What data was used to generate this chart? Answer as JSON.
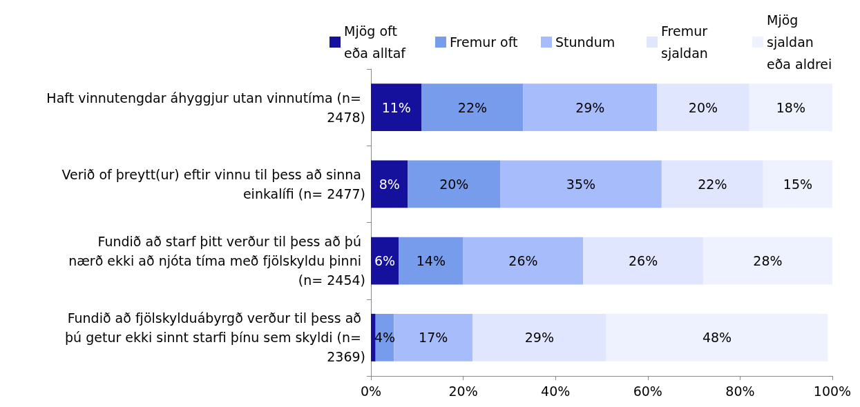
{
  "chart_data": {
    "type": "bar",
    "orientation": "horizontal",
    "stacked": true,
    "legend": "top right",
    "grid": false,
    "categories": [
      "Haft vinnutengdar áhyggjur utan vinnutíma (n= 2478)",
      "Verið of þreytt(ur) eftir vinnu til þess að sinna einkalífi (n= 2477)",
      "Fundið að starf þitt verður til þess að þú nærð ekki að njóta tíma með fjölskyldu þinni (n= 2454)",
      "Fundið að fjölskylduábyrgð verður til þess að þú getur ekki sinnt starfi þínu sem skyldi (n= 2369)"
    ],
    "series": [
      {
        "name": "Mjög oft eða alltaf",
        "color": "#15119c",
        "values": [
          11,
          8,
          6,
          1
        ],
        "value_labels": [
          "11%",
          "8%",
          "6%",
          null
        ]
      },
      {
        "name": "Fremur oft",
        "color": "#789cec",
        "values": [
          22,
          20,
          14,
          4
        ],
        "value_labels": [
          "22%",
          "20%",
          "14%",
          "4%"
        ]
      },
      {
        "name": "Stundum",
        "color": "#a7bcfa",
        "values": [
          29,
          35,
          26,
          17
        ],
        "value_labels": [
          "29%",
          "35%",
          "26%",
          "17%"
        ]
      },
      {
        "name": "Fremur sjaldan",
        "color": "#e0e6fd",
        "values": [
          20,
          22,
          26,
          29
        ],
        "value_labels": [
          "20%",
          "22%",
          "26%",
          "29%"
        ]
      },
      {
        "name": "Mjög sjaldan eða aldrei",
        "color": "#eef2fe",
        "values": [
          18,
          15,
          28,
          48
        ],
        "value_labels": [
          "18%",
          "15%",
          "28%",
          "48%"
        ]
      }
    ],
    "xlim": [
      0,
      100
    ],
    "xticks": [
      {
        "value": 0,
        "label": "0%"
      },
      {
        "value": 20,
        "label": "20%"
      },
      {
        "value": 40,
        "label": "40%"
      },
      {
        "value": 60,
        "label": "60%"
      },
      {
        "value": 80,
        "label": "80%"
      },
      {
        "value": 100,
        "label": "100%"
      }
    ]
  }
}
